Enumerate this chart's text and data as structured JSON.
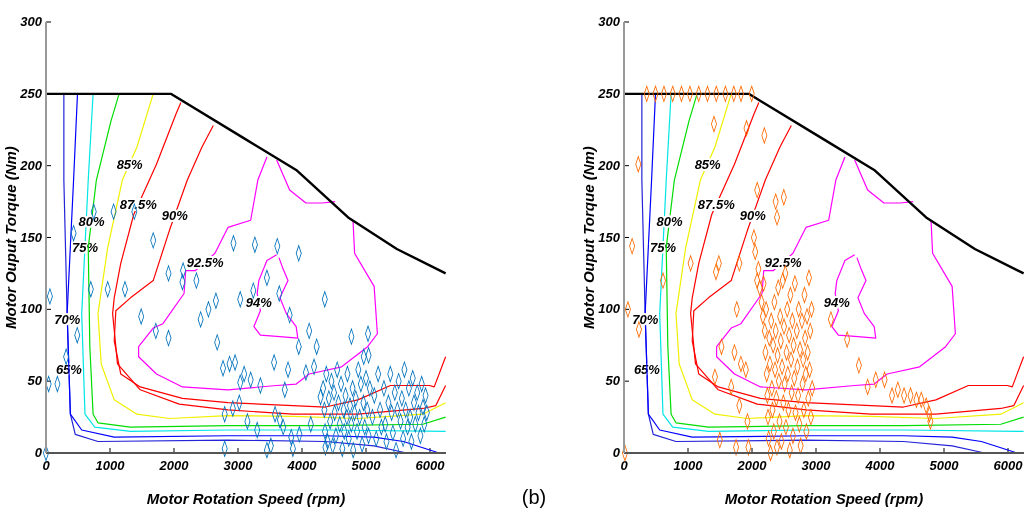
{
  "chart_data": [
    {
      "type": "line",
      "xlabel": "Motor Rotation Speed (rpm)",
      "ylabel": "Motor Ouput Torque (Nm)",
      "xlim": [
        0,
        6250
      ],
      "ylim": [
        0,
        300
      ],
      "xticks": [
        0,
        1000,
        2000,
        3000,
        4000,
        5000,
        6000
      ],
      "yticks": [
        0,
        50,
        100,
        150,
        200,
        250,
        300
      ],
      "series": [
        {
          "name": "65%",
          "color": "#2323d8",
          "x": [
            279,
            279,
            330,
            381,
            457,
            812,
            2843,
            4366,
            5127,
            5635
          ],
          "values": [
            250,
            190,
            97,
            27,
            13,
            8,
            9,
            8,
            5,
            0
          ]
        },
        {
          "name": "70%",
          "color": "#0000ff",
          "x": [
            492,
            431,
            330,
            381,
            558,
            1066,
            2843,
            4366,
            5127,
            5584,
            6142
          ],
          "values": [
            250,
            190,
            97,
            27,
            16,
            11,
            12,
            12,
            11,
            8,
            0
          ]
        },
        {
          "name": "75%",
          "color": "#00e5e5",
          "x": [
            736,
            660,
            558,
            609,
            761,
            1320,
            2843,
            4366,
            6244
          ],
          "values": [
            250,
            190,
            97,
            27,
            18,
            15,
            16,
            16,
            15
          ]
        },
        {
          "name": "80%",
          "color": "#00dd00",
          "x": [
            1142,
            1015,
            787,
            660,
            685,
            736,
            812,
            1320,
            2843,
            4366,
            5888,
            6244
          ],
          "values": [
            250,
            231,
            190,
            143,
            74,
            27,
            21,
            18,
            19,
            19,
            20,
            25
          ]
        },
        {
          "name": "85%",
          "color": "#f0f000",
          "x": [
            1675,
            1421,
            1193,
            964,
            812,
            863,
            1066,
            1421,
            1929,
            2843,
            3858,
            4873,
            5888,
            6244
          ],
          "values": [
            250,
            213,
            190,
            143,
            97,
            62,
            37,
            27,
            24,
            26,
            25.5,
            24,
            27,
            35
          ]
        },
        {
          "name": "87.5%",
          "color": "#ff0000",
          "x": [
            2107,
            2031,
            1726,
            1371,
            1168,
            1066,
            1041,
            1117,
            1472,
            2081,
            2843,
            3858,
            4873,
            5888,
            6091,
            6244
          ],
          "values": [
            244,
            236,
            201,
            166,
            132,
            108,
            97,
            62,
            44,
            34,
            30,
            27,
            27,
            31,
            33,
            47
          ]
        },
        {
          "name": "90%",
          "color": "#ff0000",
          "x": [
            2614,
            2437,
            2208,
            1929,
            1675,
            1320,
            1091,
            1066,
            1168,
            1472,
            2132,
            2843,
            3858,
            4366,
            4873,
            5381,
            5990,
            6066,
            6244
          ],
          "values": [
            228,
            213,
            190,
            155,
            120,
            108,
            99,
            78,
            55,
            46,
            38,
            35,
            33,
            32,
            37,
            47,
            47,
            46,
            67
          ]
        },
        {
          "name": "92.5%",
          "color": "#ff00ff",
          "x": [
            3452,
            3310,
            3198,
            2843,
            2640,
            2335,
            2183,
            2157,
            1827,
            1675,
            1447,
            1447,
            1726,
            2132,
            2843,
            3604,
            3909,
            4112,
            4619,
            5025,
            5178,
            5127,
            4822,
            4797,
            null,
            3604,
            3807,
            4061,
            4315,
            4518
          ],
          "values": [
            206,
            190,
            162,
            157,
            139,
            127,
            127,
            111,
            90,
            87,
            74,
            67,
            55,
            46,
            44,
            47,
            48,
            55,
            60,
            74,
            83,
            116,
            139,
            162,
            null,
            204,
            183,
            174,
            174,
            175
          ]
        },
        {
          "name": "94%",
          "color": "#ff00ff",
          "x": [
            3604,
            3452,
            3325,
            3300,
            3350,
            3249,
            3350,
            3655,
            3934,
            3909,
            3756,
            3655,
            3781,
            3705,
            3640
          ],
          "values": [
            138,
            134,
            120,
            111,
            99,
            88,
            82,
            81,
            80,
            88,
            97,
            108,
            120,
            128,
            136
          ]
        },
        {
          "color": "#000000",
          "x": [
            0,
            1950,
            3096,
            3909,
            4721,
            5482,
            6244
          ],
          "values": [
            250,
            250,
            219,
            197,
            164,
            142,
            125
          ]
        },
        {
          "type": "scatter",
          "marker": "diamond",
          "color": "#0072bd",
          "x": [
            0,
            41,
            61,
            178,
            315,
            488,
            431,
            700,
            746,
            964,
            1056,
            1234,
            1380,
            1675,
            1487,
            1716,
            1914,
            1914,
            2142,
            2132,
            2350,
            2416,
            2538,
            2655,
            2675,
            2929,
            2766,
            2868,
            2954,
            3035,
            3264,
            3614,
            3949,
            3452,
            3239,
            3645,
            3807,
            4356,
            4112,
            4772,
            5032,
            3949,
            4229,
            3564,
            5040,
            4965,
            3096,
            3035,
            3198,
            3350,
            3782,
            4061,
            4188,
            2792,
            2792,
            2919,
            3020,
            3147,
            3300,
            3452,
            3513,
            3579,
            3731,
            3706,
            3858,
            3959,
            3655,
            3832,
            4137,
            4290,
            4366,
            4330,
            4350,
            4360,
            4380,
            4400,
            4420,
            4440,
            4460,
            4480,
            4500,
            4510,
            4530,
            4550,
            4570,
            4590,
            4610,
            4630,
            4650,
            4660,
            4680,
            4700,
            4710,
            4730,
            4750,
            4770,
            4790,
            4800,
            4820,
            4840,
            4860,
            4880,
            4900,
            4920,
            4940,
            4960,
            4980,
            5000,
            5020,
            5040,
            5060,
            5100,
            5130,
            5160,
            5190,
            5220,
            5240,
            5280,
            5300,
            5320,
            5350,
            5380,
            5400,
            5420,
            5450,
            5470,
            5490,
            5510,
            5540,
            5560,
            5580,
            5600,
            5620,
            5650,
            5670,
            5690,
            5710,
            5730,
            5750,
            5770,
            5800,
            5820,
            5850,
            5870,
            5890,
            5910,
            5930,
            5950
          ],
          "values": [
            0,
            48,
            109,
            48,
            67,
            82,
            153,
            114,
            168,
            114,
            168,
            114,
            168,
            148,
            95,
            85,
            125,
            80,
            127,
            119,
            120,
            93,
            100,
            106,
            77,
            146,
            59,
            62,
            63,
            107,
            145,
            144,
            139,
            122,
            113,
            111,
            96,
            107,
            85,
            81,
            83,
            74,
            74,
            63,
            68,
            67,
            55,
            49,
            51,
            47,
            58,
            56,
            60,
            27,
            3,
            31,
            35,
            22,
            16,
            2,
            5,
            27,
            44,
            18,
            3,
            13,
            23,
            11,
            20,
            39,
            4,
            45,
            30,
            15,
            55,
            8,
            38,
            22,
            50,
            5,
            42,
            28,
            12,
            58,
            35,
            20,
            48,
            3,
            30,
            15,
            40,
            25,
            55,
            10,
            33,
            20,
            45,
            2,
            28,
            38,
            15,
            58,
            25,
            48,
            6,
            35,
            18,
            52,
            30,
            12,
            45,
            25,
            40,
            10,
            55,
            30,
            18,
            45,
            20,
            8,
            35,
            55,
            28,
            14,
            42,
            2,
            30,
            50,
            22,
            38,
            10,
            58,
            30,
            18,
            45,
            25,
            8,
            52,
            35,
            20,
            42,
            28,
            12,
            48,
            32,
            20,
            40,
            28
          ]
        }
      ]
    },
    {
      "type": "line",
      "xlabel": "Motor Rotation Speed (rpm)",
      "ylabel": "Motor Ouput Torque (Nm)",
      "xlim": [
        0,
        6250
      ],
      "ylim": [
        0,
        300
      ],
      "xticks": [
        0,
        1000,
        2000,
        3000,
        4000,
        5000,
        6000
      ],
      "yticks": [
        0,
        50,
        100,
        150,
        200,
        250,
        300
      ],
      "annotations": [
        "(b)"
      ],
      "series": [
        {
          "name": "65%",
          "color": "#2323d8",
          "x": [
            279,
            279,
            330,
            381,
            457,
            812,
            2843,
            4366,
            5127,
            5635
          ],
          "values": [
            250,
            190,
            97,
            27,
            13,
            8,
            9,
            8,
            5,
            0
          ]
        },
        {
          "name": "70%",
          "color": "#0000ff",
          "x": [
            492,
            431,
            330,
            381,
            558,
            1066,
            2843,
            4366,
            5127,
            5584,
            6142
          ],
          "values": [
            250,
            190,
            97,
            27,
            16,
            11,
            12,
            12,
            11,
            8,
            0
          ]
        },
        {
          "name": "75%",
          "color": "#00e5e5",
          "x": [
            736,
            660,
            558,
            609,
            761,
            1320,
            2843,
            4366,
            6244
          ],
          "values": [
            250,
            190,
            97,
            27,
            18,
            15,
            16,
            16,
            15
          ]
        },
        {
          "name": "80%",
          "color": "#00dd00",
          "x": [
            1142,
            1015,
            787,
            660,
            685,
            736,
            812,
            1320,
            2843,
            4366,
            5888,
            6244
          ],
          "values": [
            250,
            231,
            190,
            143,
            74,
            27,
            21,
            18,
            19,
            19,
            20,
            25
          ]
        },
        {
          "name": "85%",
          "color": "#f0f000",
          "x": [
            1675,
            1421,
            1193,
            964,
            812,
            863,
            1066,
            1421,
            1929,
            2843,
            3858,
            4873,
            5888,
            6244
          ],
          "values": [
            250,
            213,
            190,
            143,
            97,
            62,
            37,
            27,
            24,
            26,
            25.5,
            24,
            27,
            35
          ]
        },
        {
          "name": "87.5%",
          "color": "#ff0000",
          "x": [
            2107,
            2031,
            1726,
            1371,
            1168,
            1066,
            1041,
            1117,
            1472,
            2081,
            2843,
            3858,
            4873,
            5888,
            6091,
            6244
          ],
          "values": [
            244,
            236,
            201,
            166,
            132,
            108,
            97,
            62,
            44,
            34,
            30,
            27,
            27,
            31,
            33,
            47
          ]
        },
        {
          "name": "90%",
          "color": "#ff0000",
          "x": [
            2614,
            2437,
            2208,
            1929,
            1675,
            1320,
            1091,
            1066,
            1168,
            1472,
            2132,
            2843,
            3858,
            4366,
            4873,
            5381,
            5990,
            6066,
            6244
          ],
          "values": [
            228,
            213,
            190,
            155,
            120,
            108,
            99,
            78,
            55,
            46,
            38,
            35,
            33,
            32,
            37,
            47,
            47,
            46,
            67
          ]
        },
        {
          "name": "92.5%",
          "color": "#ff00ff",
          "x": [
            3452,
            3310,
            3198,
            2843,
            2640,
            2335,
            2183,
            2157,
            1827,
            1675,
            1447,
            1447,
            1726,
            2132,
            2843,
            3604,
            3909,
            4112,
            4619,
            5025,
            5178,
            5127,
            4822,
            4797,
            null,
            3604,
            3807,
            4061,
            4315,
            4518
          ],
          "values": [
            206,
            190,
            162,
            157,
            139,
            127,
            127,
            111,
            90,
            87,
            74,
            67,
            55,
            46,
            44,
            47,
            48,
            55,
            60,
            74,
            83,
            116,
            139,
            162,
            null,
            204,
            183,
            174,
            174,
            175
          ]
        },
        {
          "name": "94%",
          "color": "#ff00ff",
          "x": [
            3604,
            3452,
            3325,
            3300,
            3350,
            3249,
            3350,
            3655,
            3934,
            3909,
            3756,
            3655,
            3781,
            3705,
            3640
          ],
          "values": [
            138,
            134,
            120,
            111,
            99,
            88,
            82,
            81,
            80,
            88,
            97,
            108,
            120,
            128,
            136
          ]
        },
        {
          "color": "#000000",
          "x": [
            0,
            1950,
            3096,
            3909,
            4721,
            5482,
            6244
          ],
          "values": [
            250,
            250,
            219,
            197,
            164,
            142,
            125
          ]
        },
        {
          "type": "scatter",
          "marker": "diamond",
          "color": "#ff6a00",
          "x": [
            355,
            492,
            624,
            761,
            898,
            1030,
            1167,
            1304,
            1442,
            1584,
            1716,
            1828,
            1995,
            15,
            61,
            127,
            223,
            234,
            609,
            1041,
            1406,
            1497,
            1914,
            2193,
            2081,
            2370,
            2497,
            2391,
            1437,
            1482,
            1762,
            1802,
            1421,
            1751,
            1944,
            1802,
            1929,
            1675,
            1726,
            1523,
            1827,
            1904,
            3807,
            3934,
            4071,
            3487,
            3670,
            3233,
            4188,
            4279,
            4376,
            4477,
            4569,
            4645,
            4721,
            4772,
            4787,
            2030,
            2050,
            2080,
            2100,
            2120,
            2150,
            2170,
            2180,
            2200,
            2210,
            2220,
            2230,
            2240,
            2250,
            2260,
            2270,
            2280,
            2290,
            2300,
            2310,
            2320,
            2330,
            2340,
            2350,
            2360,
            2370,
            2380,
            2390,
            2400,
            2410,
            2420,
            2430,
            2440,
            2450,
            2460,
            2470,
            2480,
            2490,
            2500,
            2510,
            2520,
            2530,
            2540,
            2550,
            2560,
            2570,
            2580,
            2590,
            2600,
            2610,
            2620,
            2630,
            2640,
            2650,
            2660,
            2670,
            2680,
            2700,
            2710,
            2720,
            2730,
            2740,
            2750,
            2760,
            2780,
            2790,
            2800,
            2810,
            2820,
            2830,
            2840,
            2850,
            2860,
            2870,
            2880,
            2890,
            2900,
            2910,
            2920,
            2930,
            2940
          ],
          "values": [
            250,
            250,
            250,
            250,
            250,
            250,
            250,
            250,
            250,
            250,
            250,
            250,
            250,
            0,
            100,
            144,
            201,
            86,
            120,
            132,
            229,
            9,
            226,
            221,
            183,
            175,
            178,
            164,
            126,
            132,
            100,
            132,
            53,
            4,
            4,
            33,
            22,
            46,
            70,
            74,
            62,
            58,
            46,
            51,
            51,
            79,
            61,
            93,
            40,
            44,
            40,
            40,
            37,
            37,
            33,
            27,
            22,
            150,
            140,
            120,
            128,
            115,
            105,
            95,
            118,
            85,
            70,
            100,
            55,
            40,
            25,
            10,
            80,
            62,
            0,
            92,
            45,
            30,
            75,
            15,
            105,
            58,
            85,
            38,
            4,
            68,
            115,
            50,
            22,
            95,
            78,
            8,
            60,
            120,
            35,
            88,
            48,
            125,
            18,
            70,
            100,
            55,
            30,
            82,
            2,
            110,
            65,
            42,
            92,
            12,
            75,
            52,
            118,
            28,
            85,
            60,
            40,
            100,
            20,
            72,
            5,
            92,
            48,
            65,
            30,
            110,
            80,
            55,
            15,
            95,
            70,
            38,
            122,
            58,
            85,
            25,
            100,
            45
          ]
        }
      ]
    }
  ]
}
